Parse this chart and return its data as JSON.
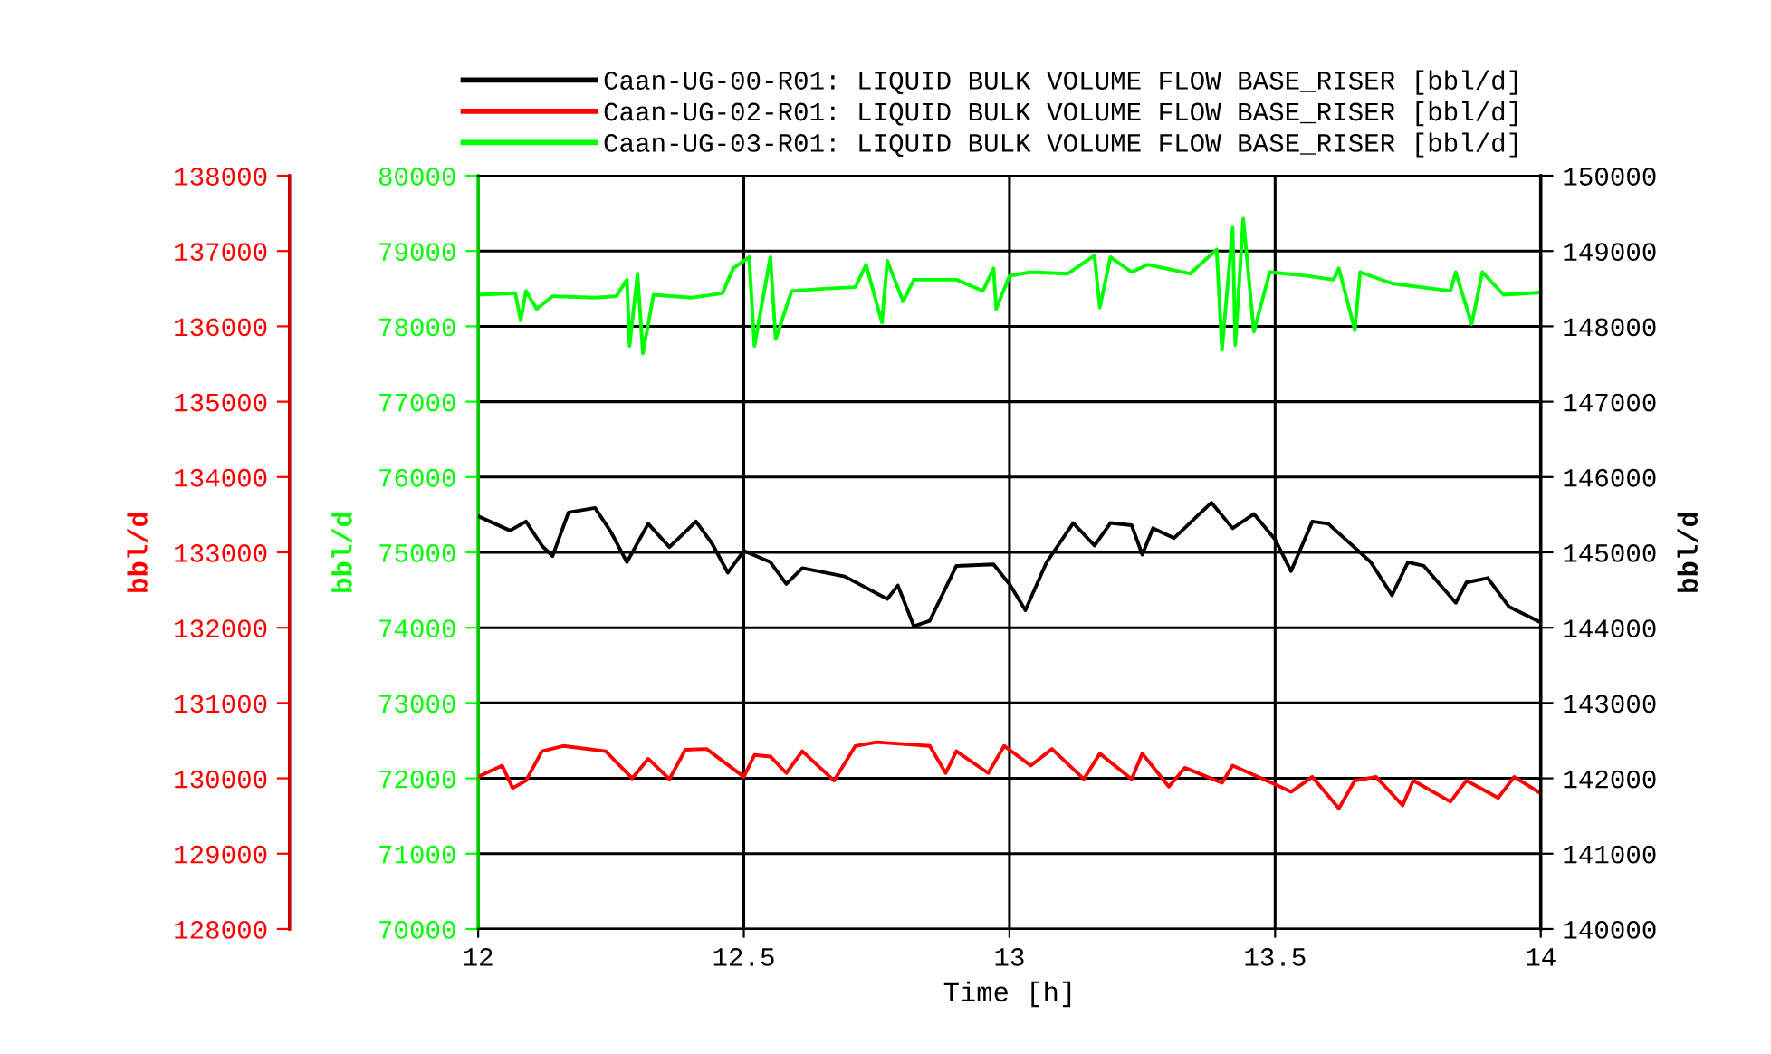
{
  "chart_data": {
    "type": "line",
    "xlabel": "Time [h]",
    "ylabel": "bbl/d",
    "y2label": "bbl/d",
    "y3label": "bbl/d",
    "xlim": [
      12,
      14
    ],
    "xticks": [
      12,
      12.5,
      13,
      13.5,
      14
    ],
    "ylim": [
      70000,
      80000
    ],
    "yticks": [
      70000,
      71000,
      72000,
      73000,
      74000,
      75000,
      76000,
      77000,
      78000,
      79000,
      80000
    ],
    "y2lim": [
      128000,
      138000
    ],
    "y2ticks": [
      128000,
      129000,
      130000,
      131000,
      132000,
      133000,
      134000,
      135000,
      136000,
      137000,
      138000
    ],
    "y3lim": [
      140000,
      150000
    ],
    "y3ticks": [
      140000,
      141000,
      142000,
      143000,
      144000,
      145000,
      146000,
      147000,
      148000,
      149000,
      150000
    ],
    "grid": true,
    "legend": "top right",
    "marker": "none",
    "line_style": "solid",
    "series": [
      {
        "name": "Caan-UG-00-R01: LIQUID BULK VOLUME FLOW BASE_RISER [bbl/d]",
        "color": "#000000",
        "axis": "y3",
        "x": [
          12.0,
          12.06,
          12.09,
          12.12,
          12.14,
          12.17,
          12.22,
          12.25,
          12.28,
          12.32,
          12.36,
          12.41,
          12.44,
          12.47,
          12.5,
          12.55,
          12.58,
          12.61,
          12.69,
          12.77,
          12.79,
          12.82,
          12.85,
          12.9,
          12.97,
          13.0,
          13.03,
          13.07,
          13.12,
          13.16,
          13.19,
          13.23,
          13.25,
          13.27,
          13.31,
          13.38,
          13.42,
          13.46,
          13.5,
          13.53,
          13.57,
          13.6,
          13.68,
          13.72,
          13.75,
          13.78,
          13.84,
          13.86,
          13.9,
          13.94,
          14.0
        ],
        "values": [
          145480,
          145290,
          145410,
          145090,
          144950,
          145530,
          145590,
          145270,
          144870,
          145380,
          145070,
          145410,
          145120,
          144730,
          145020,
          144870,
          144580,
          144790,
          144680,
          144380,
          144560,
          144020,
          144090,
          144820,
          144840,
          144580,
          144230,
          144870,
          145390,
          145090,
          145390,
          145360,
          144970,
          145320,
          145190,
          145660,
          145320,
          145510,
          145170,
          144750,
          145410,
          145380,
          144870,
          144430,
          144870,
          144820,
          144330,
          144600,
          144660,
          144280,
          144070
        ]
      },
      {
        "name": "Caan-UG-02-R01: LIQUID BULK VOLUME FLOW BASE_RISER [bbl/d]",
        "color": "#ff0000",
        "axis": "y2",
        "x": [
          12.0,
          12.045,
          12.065,
          12.09,
          12.12,
          12.16,
          12.24,
          12.29,
          12.32,
          12.36,
          12.39,
          12.43,
          12.5,
          12.52,
          12.55,
          12.58,
          12.61,
          12.67,
          12.71,
          12.75,
          12.85,
          12.88,
          12.9,
          12.96,
          12.99,
          13.04,
          13.08,
          13.14,
          13.17,
          13.23,
          13.25,
          13.3,
          13.33,
          13.4,
          13.42,
          13.5,
          13.53,
          13.57,
          13.62,
          13.65,
          13.69,
          13.74,
          13.76,
          13.83,
          13.86,
          13.92,
          13.95,
          14.0
        ],
        "values": [
          130020,
          130170,
          129870,
          129970,
          130360,
          130430,
          130360,
          130000,
          130260,
          129990,
          130380,
          130390,
          130020,
          130310,
          130290,
          130070,
          130360,
          129970,
          130430,
          130480,
          130430,
          130070,
          130360,
          130070,
          130430,
          130170,
          130390,
          129990,
          130330,
          129990,
          130330,
          129890,
          130140,
          129940,
          130170,
          129920,
          129820,
          130020,
          129600,
          129970,
          130020,
          129640,
          129970,
          129690,
          129970,
          129740,
          130020,
          129800
        ]
      },
      {
        "name": "Caan-UG-03-R01: LIQUID BULK VOLUME FLOW BASE_RISER [bbl/d]",
        "color": "#00ff00",
        "axis": "y",
        "x": [
          12.0,
          12.07,
          12.08,
          12.09,
          12.11,
          12.14,
          12.22,
          12.26,
          12.28,
          12.285,
          12.3,
          12.31,
          12.33,
          12.4,
          12.46,
          12.48,
          12.51,
          12.52,
          12.55,
          12.56,
          12.59,
          12.65,
          12.71,
          12.73,
          12.76,
          12.77,
          12.8,
          12.82,
          12.9,
          12.95,
          12.97,
          12.975,
          13.0,
          13.04,
          13.11,
          13.16,
          13.17,
          13.19,
          13.23,
          13.26,
          13.34,
          13.39,
          13.4,
          13.42,
          13.425,
          13.44,
          13.46,
          13.49,
          13.56,
          13.61,
          13.62,
          13.65,
          13.66,
          13.72,
          13.83,
          13.84,
          13.87,
          13.89,
          13.93,
          14.0
        ],
        "values": [
          78420,
          78440,
          78080,
          78470,
          78230,
          78400,
          78380,
          78400,
          78620,
          77740,
          78700,
          77640,
          78420,
          78380,
          78440,
          78770,
          78920,
          77740,
          78920,
          77830,
          78470,
          78500,
          78520,
          78820,
          78050,
          78870,
          78330,
          78620,
          78620,
          78470,
          78770,
          78230,
          78670,
          78720,
          78700,
          78940,
          78250,
          78920,
          78720,
          78820,
          78700,
          79020,
          77690,
          79310,
          77750,
          79430,
          77930,
          78720,
          78670,
          78620,
          78770,
          77950,
          78720,
          78570,
          78470,
          78720,
          78030,
          78720,
          78420,
          78450
        ]
      }
    ]
  }
}
